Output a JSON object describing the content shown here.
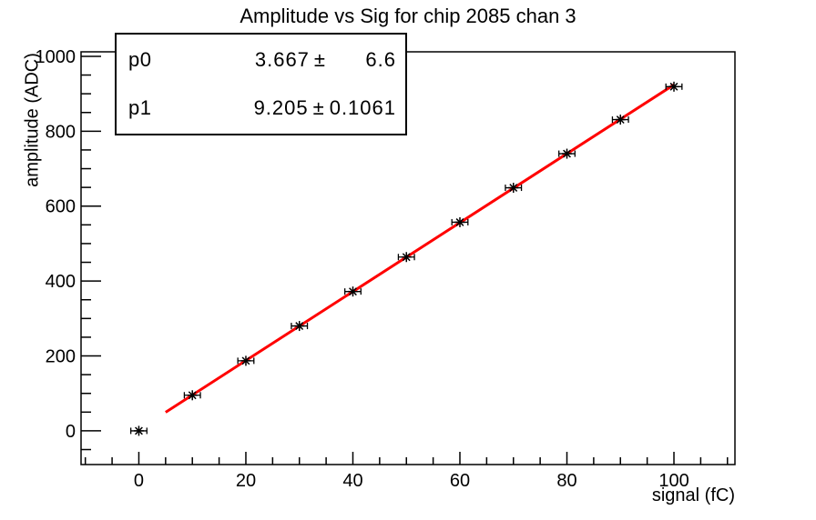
{
  "title": "Amplitude vs Sig for chip 2085 chan 3",
  "stats": {
    "pm": "±",
    "rows": [
      {
        "label": "p0",
        "est": "3.667",
        "err": "6.6"
      },
      {
        "label": "p1",
        "est": "9.205",
        "err": "0.1061"
      }
    ]
  },
  "colors": {
    "background": "#ffffff",
    "frame": "#000000",
    "marker": "#000000",
    "fit_line": "#ff0000",
    "text": "#000000"
  },
  "chart_data": {
    "type": "scatter",
    "title": "Amplitude vs Sig for chip 2085 chan 3",
    "xlabel": "signal (fC)",
    "ylabel": "amplitude (ADC)",
    "xlim": [
      -10.8,
      111.4
    ],
    "ylim": [
      -90,
      1012
    ],
    "grid": false,
    "legend_position": "none",
    "x_major_ticks": [
      0,
      20,
      40,
      60,
      80,
      100
    ],
    "x_minor_step": 5,
    "y_major_ticks": [
      0,
      200,
      400,
      600,
      800,
      1000
    ],
    "y_minor_step": 50,
    "points": {
      "x": [
        0,
        10,
        20,
        30,
        40,
        50,
        60,
        70,
        80,
        90,
        100
      ],
      "y": [
        0,
        95,
        187,
        280,
        372,
        464,
        557,
        649,
        740,
        831,
        919
      ],
      "x_err": 1.5,
      "marker": "asterisk"
    },
    "fit": {
      "model": "p0 + p1*x",
      "p0": 3.667,
      "p0_err": 6.6,
      "p1": 9.205,
      "p1_err": 0.1061,
      "range": [
        5,
        100
      ]
    }
  }
}
